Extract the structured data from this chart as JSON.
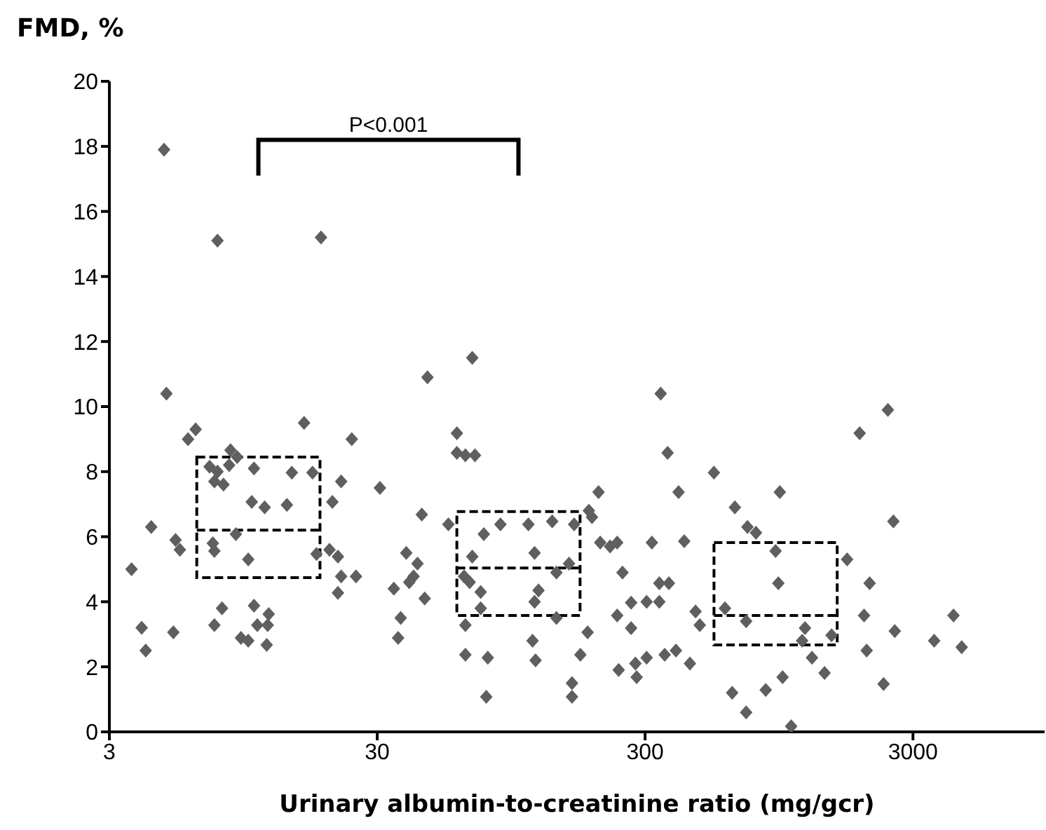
{
  "chart_data": {
    "type": "scatter",
    "ylabel": "FMD, %",
    "xlabel": "Urinary albumin-to-creatinine ratio (mg/gcr)",
    "annotations": [
      "P<0.001"
    ],
    "log": "x",
    "xlim": [
      3,
      9300
    ],
    "xticks": [
      3,
      30,
      300,
      3000
    ],
    "ylim": [
      0,
      20
    ],
    "yticks": [
      0,
      2,
      4,
      6,
      8,
      10,
      12,
      14,
      16,
      18,
      20
    ],
    "marker": "diamond",
    "line_style": "dashed",
    "series": [
      {
        "color": "#5f5f5f",
        "x": [
          3.63,
          3.96,
          4.1,
          4.3,
          5.2,
          5.3,
          5.5,
          5.9,
          6.3,
          7.1,
          7.6,
          7.4,
          8.0,
          8.5,
          9.0,
          8.4,
          10.4,
          14.4,
          17.2,
          16.0,
          24.1,
          22.0,
          20.4,
          30.7,
          10.2,
          11.4,
          13.8,
          8.9,
          7.3,
          7.4,
          9.9,
          17.8,
          19.9,
          21.4,
          22.0,
          25.0,
          21.4,
          7.9,
          7.4,
          10.4,
          11.8,
          10.7,
          11.7,
          9.3,
          9.9,
          11.6,
          4.8,
          7.6,
          18.5,
          4.9,
          67.9,
          46.2,
          59.5,
          59.5,
          64.0,
          69.5,
          201,
          44.0,
          55.3,
          75,
          86.5,
          110,
          135,
          163,
          185,
          190,
          204,
          222,
          236,
          318,
          343,
          364,
          38.5,
          42.4,
          41.0,
          39.5,
          34.6,
          45.1,
          36.7,
          35.9,
          67.9,
          116,
          156,
          140,
          63.3,
          66.4,
          73,
          120,
          73,
          116,
          64.0,
          140,
          183,
          114,
          64.0,
          77.6,
          117,
          172,
          76.6,
          160,
          160,
          247,
          266,
          236,
          266,
          304,
          339,
          339,
          368,
          239,
          276,
          279,
          304,
          355,
          542,
          400,
          955,
          649,
          723,
          778,
          921,
          1703,
          1897,
          420,
          943,
          463,
          480,
          596,
          715,
          1186,
          1157,
          1490,
          1970,
          2015,
          391,
          441,
          1259,
          1403,
          978,
          846,
          634,
          715,
          1053,
          2418,
          2535,
          2067,
          2566,
          2330,
          4250,
          3600,
          4560
        ],
        "values": [
          5.0,
          3.2,
          2.5,
          6.3,
          3.06,
          5.9,
          5.6,
          9.0,
          9.3,
          8.15,
          8.0,
          7.7,
          7.6,
          8.66,
          8.45,
          8.2,
          8.1,
          7.97,
          7.97,
          9.5,
          9.0,
          7.7,
          7.07,
          7.5,
          7.07,
          6.9,
          6.98,
          6.08,
          5.8,
          5.56,
          5.3,
          5.47,
          5.6,
          5.39,
          4.78,
          4.78,
          4.27,
          3.8,
          3.28,
          3.88,
          3.62,
          3.28,
          3.28,
          2.89,
          2.8,
          2.67,
          17.9,
          15.1,
          15.2,
          10.4,
          11.5,
          10.9,
          9.18,
          8.58,
          8.5,
          8.5,
          7.37,
          6.68,
          6.38,
          6.08,
          6.38,
          6.38,
          6.47,
          6.38,
          6.8,
          6.6,
          5.82,
          5.7,
          5.82,
          5.82,
          10.4,
          8.58,
          5.5,
          5.17,
          4.78,
          4.6,
          4.4,
          4.1,
          3.5,
          2.89,
          5.39,
          5.5,
          5.17,
          4.9,
          4.78,
          4.6,
          4.3,
          4.35,
          3.8,
          4.0,
          3.28,
          3.5,
          3.06,
          2.8,
          2.37,
          2.28,
          2.2,
          2.37,
          1.08,
          1.5,
          1.08,
          4.9,
          3.97,
          3.58,
          3.19,
          4.0,
          4.0,
          4.57,
          4.57,
          1.9,
          2.1,
          1.68,
          2.28,
          2.37,
          7.97,
          7.37,
          7.37,
          6.9,
          6.3,
          6.12,
          5.56,
          5.3,
          9.18,
          5.86,
          4.57,
          3.7,
          3.28,
          3.8,
          3.4,
          3.19,
          2.8,
          2.97,
          3.58,
          2.5,
          2.5,
          2.1,
          2.28,
          1.81,
          1.68,
          1.29,
          1.2,
          0.6,
          0.17,
          9.9,
          6.47,
          4.57,
          3.1,
          1.47,
          3.58,
          2.8,
          2.6
        ]
      },
      {
        "type": "box",
        "color": "#000000",
        "x": [
          10.8,
          101,
          921
        ],
        "boxes": [
          {
            "low": 4.74,
            "q1": 4.74,
            "median": 6.2,
            "q3": 8.45,
            "high": 8.45
          },
          {
            "low": 3.58,
            "q1": 3.58,
            "median": 5.04,
            "q3": 6.77,
            "high": 6.77
          },
          {
            "low": 2.67,
            "q1": 2.67,
            "median": 3.58,
            "q3": 5.82,
            "high": 5.82
          }
        ]
      }
    ]
  }
}
